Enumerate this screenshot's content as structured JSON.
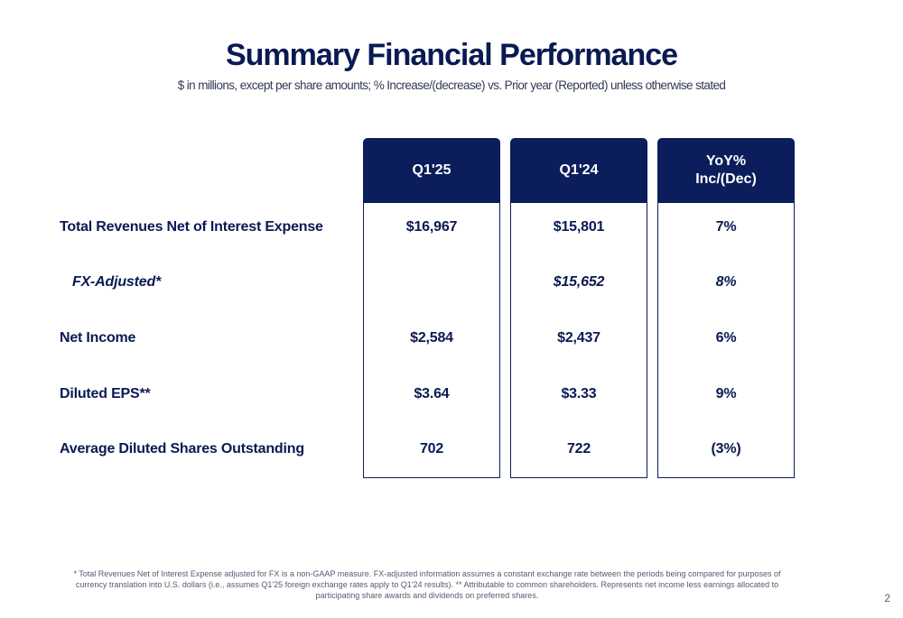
{
  "title": "Summary Financial Performance",
  "subtitle": "$ in millions, except per share amounts; % Increase/(decrease) vs. Prior year (Reported) unless otherwise stated",
  "columns": [
    "Q1'25",
    "Q1'24",
    "YoY%\nInc/(Dec)"
  ],
  "rows": [
    {
      "label": "Total Revenues Net of Interest Expense",
      "q1_25": "$16,967",
      "q1_24": "$15,801",
      "yoy": "7%"
    },
    {
      "label": "FX-Adjusted*",
      "q1_25": "",
      "q1_24": "$15,652",
      "yoy": "8%"
    },
    {
      "label": "Net Income",
      "q1_25": "$2,584",
      "q1_24": "$2,437",
      "yoy": "6%"
    },
    {
      "label": "Diluted EPS**",
      "q1_25": "$3.64",
      "q1_24": "$3.33",
      "yoy": "9%"
    },
    {
      "label": "Average Diluted Shares Outstanding",
      "q1_25": "702",
      "q1_24": "722",
      "yoy": "(3%)"
    }
  ],
  "footnote": "* Total Revenues Net of Interest Expense adjusted for FX is a non-GAAP measure. FX-adjusted information assumes a constant exchange rate between the periods being compared for purposes of currency translation into U.S. dollars (i.e., assumes Q1'25 foreign exchange rates apply to Q1'24 results). ** Attributable to common shareholders. Represents net income less earnings allocated to participating share awards and dividends on preferred shares.",
  "page_number": "2",
  "colors": {
    "navy": "#0b1d5a",
    "text": "#0a1a52"
  }
}
